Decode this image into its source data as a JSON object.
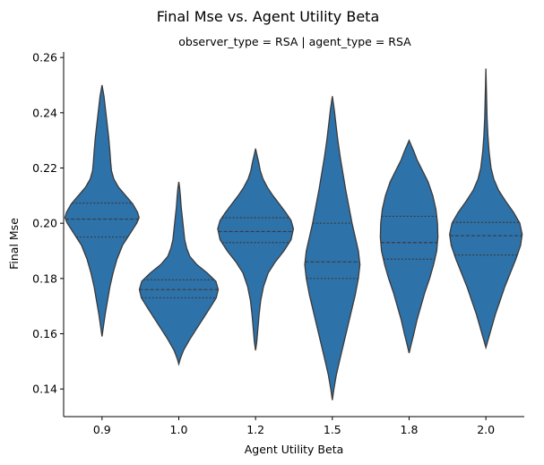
{
  "chart_data": {
    "type": "violin",
    "title": "Final Mse vs. Agent Utility Beta",
    "subtitle": "observer_type = RSA | agent_type = RSA",
    "xlabel": "Agent Utility Beta",
    "ylabel": "Final Mse",
    "categories": [
      "0.9",
      "1.0",
      "1.2",
      "1.5",
      "1.8",
      "2.0"
    ],
    "ylim": [
      0.13,
      0.262
    ],
    "yticks": [
      "0.14",
      "0.16",
      "0.18",
      "0.20",
      "0.22",
      "0.24",
      "0.26"
    ],
    "grid": false,
    "color": "#2e72aa",
    "edge_color": "#3b3b3b",
    "violins": [
      {
        "category": "0.9",
        "min": 0.159,
        "max": 0.25,
        "quartiles": [
          0.195,
          0.2015,
          0.2073
        ],
        "profile": [
          [
            0.159,
            0.0
          ],
          [
            0.162,
            0.03
          ],
          [
            0.167,
            0.08
          ],
          [
            0.172,
            0.14
          ],
          [
            0.177,
            0.2
          ],
          [
            0.182,
            0.28
          ],
          [
            0.187,
            0.38
          ],
          [
            0.192,
            0.52
          ],
          [
            0.196,
            0.7
          ],
          [
            0.2,
            0.88
          ],
          [
            0.202,
            0.94
          ],
          [
            0.204,
            0.9
          ],
          [
            0.207,
            0.78
          ],
          [
            0.21,
            0.6
          ],
          [
            0.213,
            0.42
          ],
          [
            0.216,
            0.3
          ],
          [
            0.219,
            0.24
          ],
          [
            0.222,
            0.22
          ],
          [
            0.226,
            0.2
          ],
          [
            0.231,
            0.17
          ],
          [
            0.236,
            0.13
          ],
          [
            0.241,
            0.09
          ],
          [
            0.246,
            0.05
          ],
          [
            0.25,
            0.0
          ]
        ]
      },
      {
        "category": "1.0",
        "min": 0.149,
        "max": 0.215,
        "quartiles": [
          0.173,
          0.176,
          0.1795
        ],
        "profile": [
          [
            0.149,
            0.0
          ],
          [
            0.151,
            0.04
          ],
          [
            0.154,
            0.12
          ],
          [
            0.158,
            0.28
          ],
          [
            0.162,
            0.46
          ],
          [
            0.166,
            0.64
          ],
          [
            0.17,
            0.82
          ],
          [
            0.173,
            0.95
          ],
          [
            0.176,
            1.0
          ],
          [
            0.179,
            0.94
          ],
          [
            0.182,
            0.72
          ],
          [
            0.185,
            0.46
          ],
          [
            0.188,
            0.28
          ],
          [
            0.191,
            0.2
          ],
          [
            0.194,
            0.15
          ],
          [
            0.198,
            0.12
          ],
          [
            0.202,
            0.09
          ],
          [
            0.206,
            0.06
          ],
          [
            0.21,
            0.04
          ],
          [
            0.213,
            0.02
          ],
          [
            0.215,
            0.0
          ]
        ]
      },
      {
        "category": "1.2",
        "min": 0.154,
        "max": 0.227,
        "quartiles": [
          0.193,
          0.197,
          0.202
        ],
        "profile": [
          [
            0.154,
            0.0
          ],
          [
            0.157,
            0.03
          ],
          [
            0.162,
            0.06
          ],
          [
            0.167,
            0.09
          ],
          [
            0.172,
            0.13
          ],
          [
            0.177,
            0.2
          ],
          [
            0.182,
            0.32
          ],
          [
            0.186,
            0.5
          ],
          [
            0.19,
            0.72
          ],
          [
            0.194,
            0.9
          ],
          [
            0.198,
            0.96
          ],
          [
            0.201,
            0.9
          ],
          [
            0.204,
            0.76
          ],
          [
            0.207,
            0.6
          ],
          [
            0.21,
            0.44
          ],
          [
            0.213,
            0.3
          ],
          [
            0.216,
            0.19
          ],
          [
            0.219,
            0.12
          ],
          [
            0.222,
            0.08
          ],
          [
            0.225,
            0.03
          ],
          [
            0.227,
            0.0
          ]
        ]
      },
      {
        "category": "1.5",
        "min": 0.136,
        "max": 0.246,
        "quartiles": [
          0.18,
          0.186,
          0.2
        ],
        "profile": [
          [
            0.136,
            0.0
          ],
          [
            0.14,
            0.04
          ],
          [
            0.145,
            0.1
          ],
          [
            0.15,
            0.18
          ],
          [
            0.156,
            0.28
          ],
          [
            0.162,
            0.38
          ],
          [
            0.168,
            0.48
          ],
          [
            0.174,
            0.58
          ],
          [
            0.18,
            0.66
          ],
          [
            0.185,
            0.7
          ],
          [
            0.19,
            0.66
          ],
          [
            0.195,
            0.58
          ],
          [
            0.2,
            0.5
          ],
          [
            0.206,
            0.42
          ],
          [
            0.212,
            0.34
          ],
          [
            0.218,
            0.27
          ],
          [
            0.224,
            0.2
          ],
          [
            0.23,
            0.14
          ],
          [
            0.236,
            0.09
          ],
          [
            0.241,
            0.05
          ],
          [
            0.246,
            0.0
          ]
        ]
      },
      {
        "category": "1.8",
        "min": 0.153,
        "max": 0.23,
        "quartiles": [
          0.187,
          0.193,
          0.2025
        ],
        "profile": [
          [
            0.153,
            0.0
          ],
          [
            0.156,
            0.05
          ],
          [
            0.16,
            0.12
          ],
          [
            0.165,
            0.2
          ],
          [
            0.17,
            0.3
          ],
          [
            0.175,
            0.4
          ],
          [
            0.18,
            0.52
          ],
          [
            0.185,
            0.62
          ],
          [
            0.19,
            0.7
          ],
          [
            0.195,
            0.73
          ],
          [
            0.2,
            0.72
          ],
          [
            0.205,
            0.68
          ],
          [
            0.21,
            0.6
          ],
          [
            0.215,
            0.48
          ],
          [
            0.219,
            0.34
          ],
          [
            0.223,
            0.2
          ],
          [
            0.226,
            0.12
          ],
          [
            0.228,
            0.06
          ],
          [
            0.23,
            0.0
          ]
        ]
      },
      {
        "category": "2.0",
        "min": 0.155,
        "max": 0.256,
        "quartiles": [
          0.1885,
          0.1955,
          0.2003
        ],
        "profile": [
          [
            0.155,
            0.0
          ],
          [
            0.158,
            0.06
          ],
          [
            0.162,
            0.14
          ],
          [
            0.167,
            0.24
          ],
          [
            0.172,
            0.36
          ],
          [
            0.177,
            0.48
          ],
          [
            0.182,
            0.62
          ],
          [
            0.187,
            0.76
          ],
          [
            0.192,
            0.88
          ],
          [
            0.196,
            0.92
          ],
          [
            0.2,
            0.86
          ],
          [
            0.204,
            0.7
          ],
          [
            0.208,
            0.5
          ],
          [
            0.212,
            0.32
          ],
          [
            0.216,
            0.2
          ],
          [
            0.22,
            0.13
          ],
          [
            0.226,
            0.08
          ],
          [
            0.232,
            0.05
          ],
          [
            0.238,
            0.03
          ],
          [
            0.244,
            0.02
          ],
          [
            0.25,
            0.01
          ],
          [
            0.256,
            0.0
          ]
        ]
      }
    ]
  }
}
